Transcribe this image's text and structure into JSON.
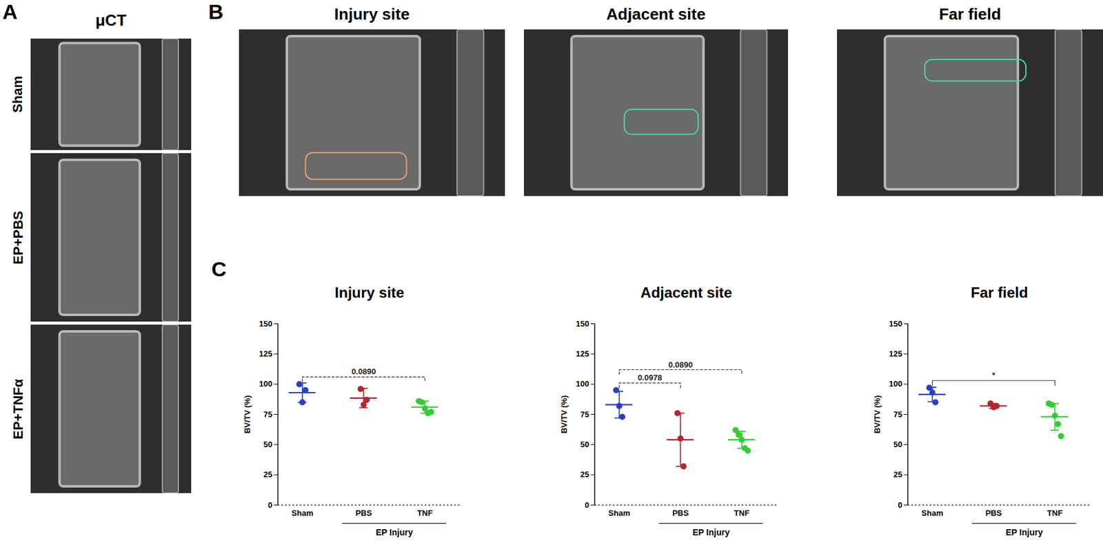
{
  "figure": {
    "panel_labels": [
      "A",
      "B",
      "C"
    ],
    "panel_a": {
      "title": "μCT",
      "rows": [
        "Sham",
        "EP+PBS",
        "EP+TNFα"
      ]
    },
    "panel_b": {
      "titles": [
        "Injury site",
        "Adjacent site",
        "Far field"
      ]
    }
  },
  "chart_data": [
    {
      "type": "scatter",
      "title": "Injury site",
      "y_label": "BV/TV (%)",
      "categories": [
        "Sham",
        "PBS",
        "TNF"
      ],
      "group_label": "EP Injury",
      "group_categories": [
        "PBS",
        "TNF"
      ],
      "colors": [
        "#2b3fc4",
        "#b5262b",
        "#33cc33"
      ],
      "values": [
        [
          100,
          85,
          95
        ],
        [
          96,
          83,
          87
        ],
        [
          86,
          85,
          80,
          76,
          77
        ]
      ],
      "mean": [
        93,
        88.5,
        81
      ],
      "error": [
        8,
        8,
        5
      ],
      "annotations": [
        {
          "from": "Sham",
          "to": "TNF",
          "label": "0.0890",
          "line_style": "dashed"
        }
      ],
      "ylim": [
        0,
        150
      ],
      "yticks": [
        0,
        25,
        50,
        75,
        100,
        125,
        150
      ]
    },
    {
      "type": "scatter",
      "title": "Adjacent site",
      "y_label": "BV/TV (%)",
      "categories": [
        "Sham",
        "PBS",
        "TNF"
      ],
      "group_label": "EP Injury",
      "group_categories": [
        "PBS",
        "TNF"
      ],
      "colors": [
        "#2b3fc4",
        "#b5262b",
        "#33cc33"
      ],
      "values": [
        [
          95,
          82,
          73
        ],
        [
          76,
          55,
          32
        ],
        [
          62,
          58,
          54,
          47,
          45
        ]
      ],
      "mean": [
        83,
        54,
        54
      ],
      "error": [
        11,
        22,
        7
      ],
      "annotations": [
        {
          "from": "Sham",
          "to": "PBS",
          "label": "0.0978",
          "line_style": "dashed"
        },
        {
          "from": "Sham",
          "to": "TNF",
          "label": "0.0890",
          "line_style": "dashed"
        }
      ],
      "ylim": [
        0,
        150
      ],
      "yticks": [
        0,
        25,
        50,
        75,
        100,
        125,
        150
      ]
    },
    {
      "type": "scatter",
      "title": "Far field",
      "y_label": "BV/TV (%)",
      "categories": [
        "Sham",
        "PBS",
        "TNF"
      ],
      "group_label": "EP Injury",
      "group_categories": [
        "PBS",
        "TNF"
      ],
      "colors": [
        "#2b3fc4",
        "#b5262b",
        "#33cc33"
      ],
      "values": [
        [
          97,
          93,
          85
        ],
        [
          84,
          81,
          82
        ],
        [
          84,
          83,
          74,
          67,
          57
        ]
      ],
      "mean": [
        91.5,
        82,
        73
      ],
      "error": [
        6,
        2,
        11
      ],
      "annotations": [
        {
          "from": "Sham",
          "to": "TNF",
          "label": "*",
          "line_style": "solid"
        }
      ],
      "ylim": [
        0,
        150
      ],
      "yticks": [
        0,
        25,
        50,
        75,
        100,
        125,
        150
      ]
    }
  ]
}
